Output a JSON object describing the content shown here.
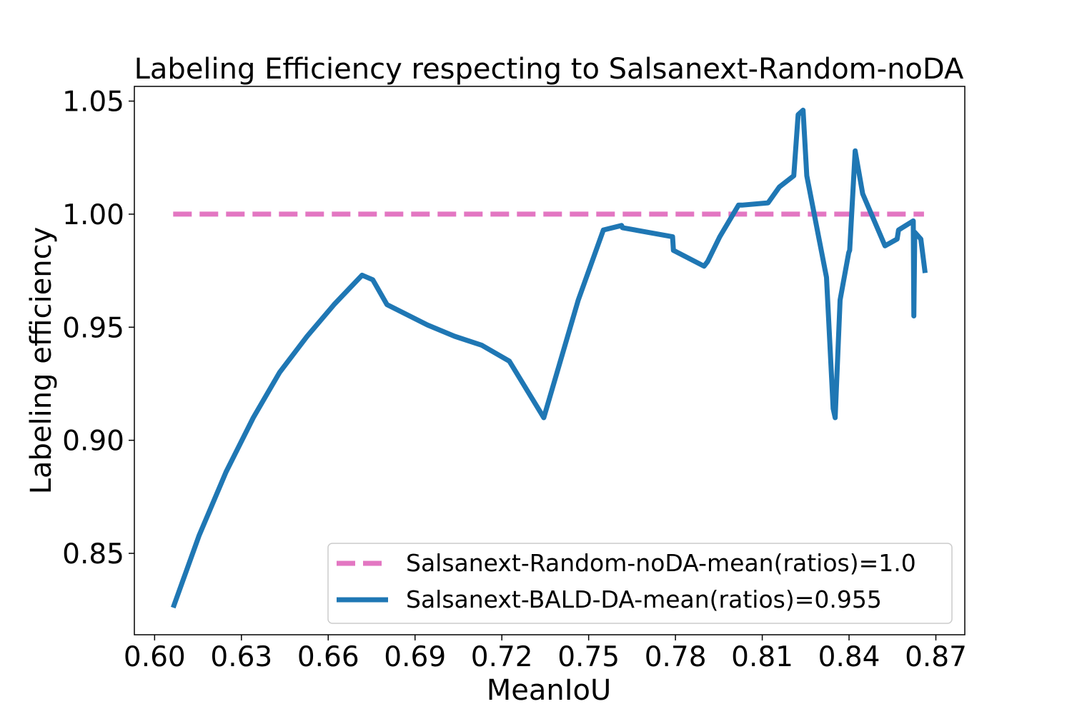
{
  "chart_data": {
    "type": "line",
    "title": "Labeling Efficiency respecting to Salsanext-Random-noDA",
    "xlabel": "MeanIoU",
    "ylabel": "Labeling efficiency",
    "xlim": [
      0.593,
      0.88
    ],
    "ylim": [
      0.814,
      1.0565
    ],
    "x_ticks": [
      0.6,
      0.63,
      0.66,
      0.69,
      0.72,
      0.75,
      0.78,
      0.81,
      0.84,
      0.87
    ],
    "x_tick_labels": [
      "0.60",
      "0.63",
      "0.66",
      "0.69",
      "0.72",
      "0.75",
      "0.78",
      "0.81",
      "0.84",
      "0.87"
    ],
    "y_ticks": [
      0.85,
      0.9,
      0.95,
      1.0,
      1.05
    ],
    "y_tick_labels": [
      "0.85",
      "0.90",
      "0.95",
      "1.00",
      "1.05"
    ],
    "grid": false,
    "legend_position": "lower-right",
    "series": [
      {
        "name": "Salsanext-Random-noDA-mean(ratios)=1.0",
        "color": "#e377c2",
        "style": "dashed",
        "x": [
          0.6064,
          0.8659
        ],
        "y": [
          1.0,
          1.0
        ]
      },
      {
        "name": "Salsanext-BALD-DA-mean(ratios)=0.955",
        "color": "#1f77b4",
        "style": "solid",
        "x": [
          0.6064,
          0.6154,
          0.6247,
          0.6341,
          0.6432,
          0.6527,
          0.662,
          0.6717,
          0.6754,
          0.6803,
          0.6865,
          0.6943,
          0.7037,
          0.7131,
          0.7226,
          0.7345,
          0.7464,
          0.7551,
          0.7614,
          0.7617,
          0.779,
          0.7793,
          0.7899,
          0.7911,
          0.7953,
          0.8018,
          0.803,
          0.812,
          0.8159,
          0.8209,
          0.8224,
          0.8241,
          0.8254,
          0.8322,
          0.8345,
          0.8352,
          0.8369,
          0.8399,
          0.8402,
          0.8421,
          0.8447,
          0.8524,
          0.8566,
          0.8571,
          0.8622,
          0.8624,
          0.8627,
          0.8648,
          0.8663
        ],
        "y": [
          0.826,
          0.858,
          0.886,
          0.91,
          0.93,
          0.946,
          0.96,
          0.973,
          0.971,
          0.96,
          0.956,
          0.951,
          0.946,
          0.942,
          0.935,
          0.91,
          0.962,
          0.993,
          0.995,
          0.994,
          0.99,
          0.984,
          0.977,
          0.979,
          0.99,
          1.004,
          1.004,
          1.005,
          1.012,
          1.017,
          1.044,
          1.046,
          1.017,
          0.972,
          0.914,
          0.91,
          0.962,
          0.983,
          0.984,
          1.028,
          1.009,
          0.986,
          0.989,
          0.993,
          0.997,
          0.955,
          0.992,
          0.989,
          0.974
        ]
      }
    ]
  }
}
